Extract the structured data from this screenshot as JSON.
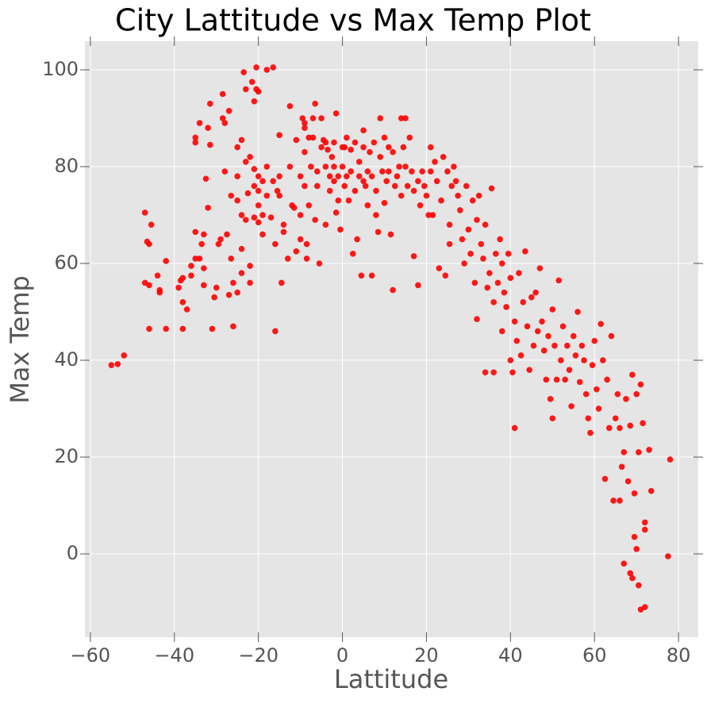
{
  "chart_data": {
    "type": "scatter",
    "title": "City Lattitude vs Max Temp Plot",
    "x_label": "Lattitude",
    "y_label": "Max Temp",
    "color": "#ff0000",
    "grid": true,
    "xlim": [
      -61.3,
      84.7
    ],
    "ylim": [
      -17.2,
      105.9
    ],
    "xticks": [
      {
        "value": -60,
        "label": "−60"
      },
      {
        "value": -40,
        "label": "−40"
      },
      {
        "value": -20,
        "label": "−20"
      },
      0,
      20,
      40,
      60,
      80
    ],
    "yticks": [
      0,
      20,
      40,
      60,
      80,
      100
    ],
    "x": [
      -55,
      -53.5,
      -52,
      -47,
      -46.5,
      -46,
      -45.5,
      -47,
      -46,
      -46,
      -44,
      -43.5,
      -43.5,
      -42,
      -42,
      -39,
      -38.5,
      -38,
      -38,
      -38,
      -37,
      -36,
      -36,
      -35,
      -35,
      -35,
      -35,
      -34,
      -34,
      -33.5,
      -33,
      -33,
      -33,
      -32.5,
      -32,
      -32,
      -31.5,
      -31.5,
      -31,
      -30.5,
      -30,
      -29.5,
      -29,
      -28.5,
      -28.5,
      -28,
      -28,
      -27.5,
      -27,
      -27,
      -26.5,
      -26.5,
      -26,
      -26,
      -25,
      -25,
      -25,
      -25,
      -24,
      -24,
      -24,
      -24,
      -23.5,
      -23,
      -23,
      -23,
      -22.5,
      -22,
      -22,
      -22,
      -21.5,
      -21,
      -21,
      -21,
      -21,
      -20.5,
      -20.5,
      -20,
      -20,
      -20,
      -20,
      -20,
      -19,
      -19,
      -19,
      -18,
      -18,
      -18,
      -17,
      -16.5,
      -16.5,
      -16,
      -16,
      -15.5,
      -15,
      -15,
      -15,
      -14.5,
      -14,
      -14,
      -13,
      -12.5,
      -12.5,
      -12,
      -11.5,
      -11,
      -11,
      -10,
      -10,
      -10,
      -9.5,
      -9,
      -9,
      -9,
      -9,
      -8.5,
      -8.5,
      -8,
      -8,
      -7.5,
      -7,
      -7,
      -6.5,
      -6.5,
      -6,
      -6,
      -5.5,
      -5,
      -5,
      -4.5,
      -4,
      -4,
      -4,
      -3.5,
      -3,
      -3,
      -2.5,
      -2,
      -2,
      -2,
      -1.5,
      -1.5,
      -1,
      -1,
      -0.5,
      0,
      0,
      0.5,
      0.5,
      1,
      1,
      1.5,
      2,
      2,
      2.5,
      3,
      3,
      3.5,
      4,
      4,
      4.5,
      5,
      5,
      5,
      5.5,
      6,
      6,
      6.5,
      7,
      7,
      7.5,
      8,
      8,
      8.5,
      9,
      9,
      9.5,
      10,
      10,
      10.5,
      11,
      11,
      11.5,
      12,
      12,
      12.5,
      13,
      13.5,
      14,
      14,
      14.5,
      15,
      15,
      15.5,
      16,
      16.5,
      17,
      17,
      18,
      18,
      18.5,
      19,
      19.5,
      20,
      20.5,
      21,
      21,
      21.5,
      22,
      22.5,
      23,
      23.5,
      24,
      24.5,
      25,
      25.5,
      25.5,
      26,
      26.5,
      27,
      27.5,
      28,
      28.5,
      29,
      29.5,
      30,
      30.5,
      31,
      31.5,
      32,
      32,
      32.5,
      33,
      33.5,
      34,
      34,
      34.5,
      35,
      35.5,
      36,
      36,
      36.5,
      37,
      37.5,
      38,
      38,
      38.5,
      39,
      39.5,
      40,
      40,
      40.5,
      41,
      41,
      41.5,
      42,
      42.5,
      43,
      43.5,
      44,
      44.5,
      45,
      45.5,
      46,
      46.5,
      47,
      47.5,
      48,
      48.5,
      49,
      49.5,
      50,
      50,
      50.5,
      51,
      51.5,
      52,
      52.5,
      53,
      53.5,
      54,
      54.5,
      55,
      55.5,
      56,
      56.5,
      57,
      57.5,
      58,
      58.5,
      59,
      59.5,
      60,
      60.5,
      61,
      61.5,
      62,
      62.5,
      63,
      63.5,
      64,
      64.5,
      65,
      65.5,
      66,
      66,
      66.5,
      67,
      67,
      67.5,
      68,
      68.5,
      68.5,
      69,
      69,
      69.5,
      69.5,
      70,
      70,
      70.5,
      70.5,
      71,
      71,
      71.5,
      72,
      72,
      72,
      73,
      73.5,
      77.5,
      78
    ],
    "values": [
      39,
      39.2,
      41,
      70.5,
      64.5,
      64,
      68,
      56,
      55.5,
      46.5,
      57.5,
      54,
      54.5,
      46.5,
      60.5,
      55,
      56.5,
      57,
      52,
      46.5,
      50.5,
      57.5,
      59.5,
      66.5,
      61,
      86,
      85,
      89,
      61,
      64,
      66,
      59,
      55.5,
      77.5,
      71.5,
      88,
      93,
      84.5,
      46.5,
      53,
      55,
      64,
      65,
      95,
      90,
      89,
      79,
      66,
      53.5,
      91.5,
      74,
      61,
      47,
      56,
      84,
      78,
      73,
      54,
      85.5,
      70,
      63,
      58,
      99.5,
      96,
      81,
      69,
      74.5,
      59.5,
      56,
      82,
      97.5,
      93.5,
      79.5,
      76,
      69.5,
      100.5,
      96,
      95.5,
      78,
      75,
      72,
      68.5,
      77,
      70,
      66,
      100,
      80,
      74,
      69.5,
      100.5,
      77,
      46,
      64,
      75,
      78,
      86.5,
      74,
      56,
      68,
      66.5,
      61,
      92.5,
      80,
      72,
      71.5,
      62.5,
      85.5,
      78,
      70,
      65,
      90,
      89,
      88,
      83,
      76,
      64,
      61,
      72,
      86,
      80,
      90,
      86,
      93,
      69,
      76,
      79,
      60,
      84,
      90,
      85.5,
      85,
      80,
      68,
      83.5,
      75,
      78,
      82,
      85,
      80,
      77,
      70.5,
      91,
      78,
      73,
      67,
      84,
      80,
      76,
      84,
      86,
      78,
      73,
      83.5,
      79,
      62,
      85,
      75,
      65,
      81,
      78,
      57.5,
      87.5,
      77,
      84,
      76,
      79,
      72,
      83,
      57.5,
      78,
      85,
      75,
      70,
      66.5,
      90,
      82,
      79,
      86,
      72.5,
      77,
      84,
      79,
      66,
      54.5,
      83,
      76,
      78,
      80,
      90,
      74,
      84,
      90,
      80,
      76,
      86,
      79,
      75,
      61.5,
      55.5,
      77,
      72,
      79,
      76,
      74,
      70,
      84,
      79,
      70,
      81,
      77,
      59,
      73,
      82,
      57.5,
      79,
      68,
      64,
      76,
      80,
      77,
      74,
      71,
      65,
      60,
      76,
      67,
      62,
      73,
      56,
      69,
      48.5,
      74,
      64,
      61,
      37.5,
      68,
      55,
      58,
      75.5,
      52,
      37.5,
      62,
      56,
      65,
      60,
      46,
      54,
      51,
      62,
      40,
      57,
      37.5,
      26,
      48,
      44,
      58,
      41,
      52,
      62.5,
      47,
      38,
      53,
      43,
      54,
      46,
      59,
      48,
      42,
      36,
      45,
      32,
      28,
      50.5,
      43,
      36,
      56.5,
      40,
      47,
      36,
      43,
      38,
      30.5,
      45,
      41,
      50,
      35.5,
      43,
      40,
      33,
      28,
      25,
      39,
      44,
      34,
      30,
      47.5,
      40,
      15.5,
      36,
      26,
      45,
      11,
      28,
      33,
      26,
      11,
      18,
      21,
      -2,
      32,
      15,
      26.5,
      -4,
      37,
      -5,
      12.5,
      3.5,
      1,
      33,
      -6.5,
      21,
      -11.5,
      35,
      27,
      5,
      6.5,
      -11,
      21.5,
      13,
      -0.5,
      19.5
    ]
  }
}
